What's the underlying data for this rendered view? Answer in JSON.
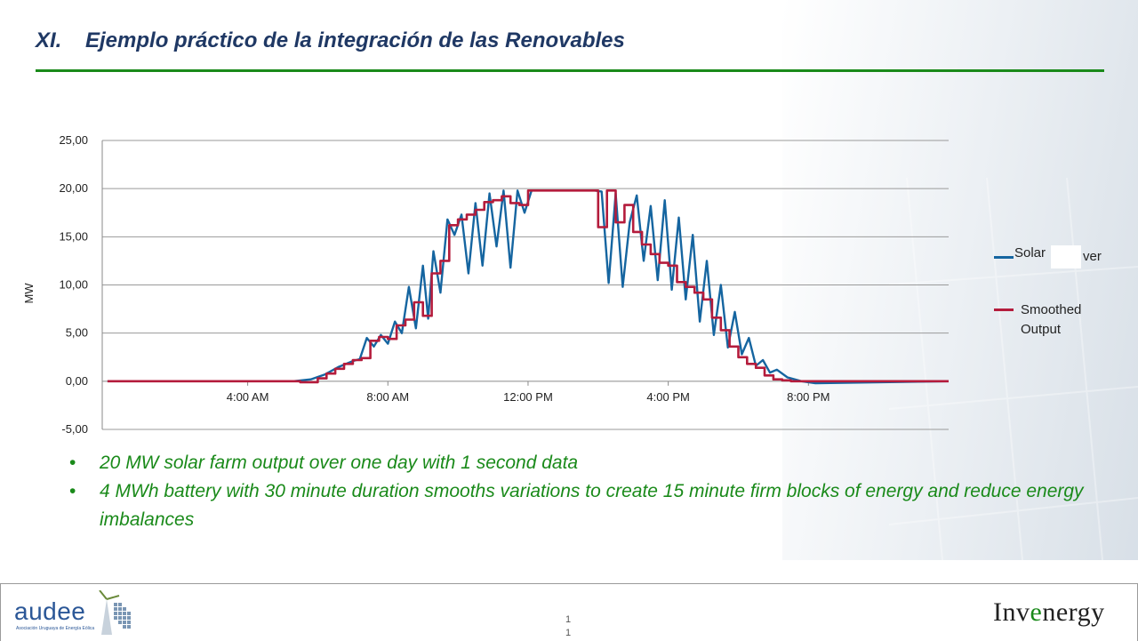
{
  "slide": {
    "title_number": "XI.",
    "title_text": "Ejemplo práctico de la integración de las Renovables",
    "bullets": [
      "20 MW solar farm output over one day with 1 second data",
      "4 MWh battery with 30 minute duration smooths variations to create 15 minute firm blocks of energy and reduce energy imbalances"
    ],
    "page_number_line1": "1",
    "page_number_line2": "1"
  },
  "legend": {
    "solar_label": "Solar",
    "solar_trailing": "ver",
    "smoothed_label": "Smoothed Output"
  },
  "logos": {
    "audee_word": "audee",
    "audee_sub": "Asociación Uruguaya de Energía Eólica",
    "invenergy_pre": "Inv",
    "invenergy_e": "e",
    "invenergy_post": "nergy"
  },
  "colors": {
    "title": "#1f3864",
    "rule": "#1a8a1a",
    "bullets": "#1a8a1a",
    "solar_series": "#1565a0",
    "smoothed_series": "#b41c3c"
  },
  "chart_data": {
    "type": "line",
    "ylabel": "MW",
    "xlabel": "",
    "ylim": [
      -5,
      25
    ],
    "yticks": [
      "25,00",
      "20,00",
      "15,00",
      "10,00",
      "5,00",
      "0,00",
      "-5,00"
    ],
    "ytick_values": [
      25,
      20,
      15,
      10,
      5,
      0,
      -5
    ],
    "xticks": [
      "4:00 AM",
      "8:00 AM",
      "12:00 PM",
      "4:00 PM",
      "8:00 PM"
    ],
    "xtick_hours": [
      4,
      8,
      12,
      16,
      20
    ],
    "xlim_hours": [
      -0.15,
      24
    ],
    "grid": "horizontal",
    "series": [
      {
        "name": "Solar",
        "x_hours": [
          0,
          5.3,
          5.8,
          6.2,
          6.6,
          7,
          7.2,
          7.4,
          7.6,
          7.8,
          8,
          8.2,
          8.4,
          8.6,
          8.8,
          9,
          9.15,
          9.3,
          9.5,
          9.7,
          9.9,
          10.1,
          10.3,
          10.5,
          10.7,
          10.9,
          11.1,
          11.3,
          11.5,
          11.7,
          11.9,
          12.1,
          12.3,
          12.5,
          12.7,
          12.9,
          13.1,
          13.3,
          13.5,
          13.7,
          13.9,
          14.1,
          14.3,
          14.5,
          14.7,
          14.9,
          15.1,
          15.3,
          15.5,
          15.7,
          15.9,
          16.1,
          16.3,
          16.5,
          16.7,
          16.9,
          17.1,
          17.3,
          17.5,
          17.7,
          17.9,
          18.1,
          18.3,
          18.5,
          18.7,
          18.9,
          19.1,
          19.4,
          19.8,
          20.2,
          24
        ],
        "values": [
          0,
          0,
          0.2,
          0.7,
          1.5,
          2.1,
          2.3,
          4.5,
          3.6,
          4.8,
          3.9,
          6.2,
          5,
          9.8,
          5.5,
          12,
          6.5,
          13.5,
          9.2,
          16.8,
          15.2,
          17.3,
          11.2,
          18.5,
          12,
          19.5,
          14,
          19.8,
          11.8,
          19.8,
          17.5,
          19.8,
          19.8,
          19.8,
          19.8,
          19.8,
          19.8,
          19.8,
          19.8,
          19.8,
          19.8,
          19.7,
          10.2,
          19.5,
          9.8,
          16.5,
          19.3,
          12.5,
          18.2,
          10.5,
          18.8,
          9.5,
          17,
          8.5,
          15.2,
          6.2,
          12.5,
          4.8,
          10,
          3.5,
          7.2,
          2.8,
          4.5,
          1.6,
          2.2,
          0.9,
          1.2,
          0.4,
          0,
          -0.2,
          0
        ]
      },
      {
        "name": "Smoothed Output",
        "x_hours": [
          0,
          5.5,
          6,
          6.25,
          6.5,
          6.75,
          7,
          7.25,
          7.5,
          7.75,
          8,
          8.25,
          8.5,
          8.75,
          9,
          9.25,
          9.5,
          9.75,
          10,
          10.25,
          10.5,
          10.75,
          11,
          11.25,
          11.5,
          11.75,
          12,
          12.25,
          12.5,
          12.75,
          13,
          13.25,
          13.5,
          13.75,
          14,
          14.25,
          14.5,
          14.75,
          15,
          15.25,
          15.5,
          15.75,
          16,
          16.25,
          16.5,
          16.75,
          17,
          17.25,
          17.5,
          17.75,
          18,
          18.25,
          18.5,
          18.75,
          19,
          19.25,
          19.5,
          19.75,
          20,
          24
        ],
        "values": [
          0,
          -0.1,
          0.3,
          0.8,
          1.3,
          1.8,
          2.2,
          2.4,
          4.2,
          4.6,
          4.4,
          5.8,
          6.4,
          8.2,
          6.8,
          11.2,
          12.5,
          16.2,
          16.8,
          17.3,
          17.8,
          18.6,
          18.8,
          19.2,
          18.5,
          18.3,
          19.8,
          19.8,
          19.8,
          19.8,
          19.8,
          19.8,
          19.8,
          19.8,
          16,
          19.8,
          16.5,
          18.3,
          15.5,
          14.2,
          13.2,
          12.3,
          12,
          10.3,
          9.8,
          9.2,
          8.5,
          6.6,
          5.3,
          3.6,
          2.5,
          1.8,
          1.4,
          0.6,
          0.2,
          0.1,
          0,
          0,
          0,
          0
        ]
      }
    ]
  }
}
